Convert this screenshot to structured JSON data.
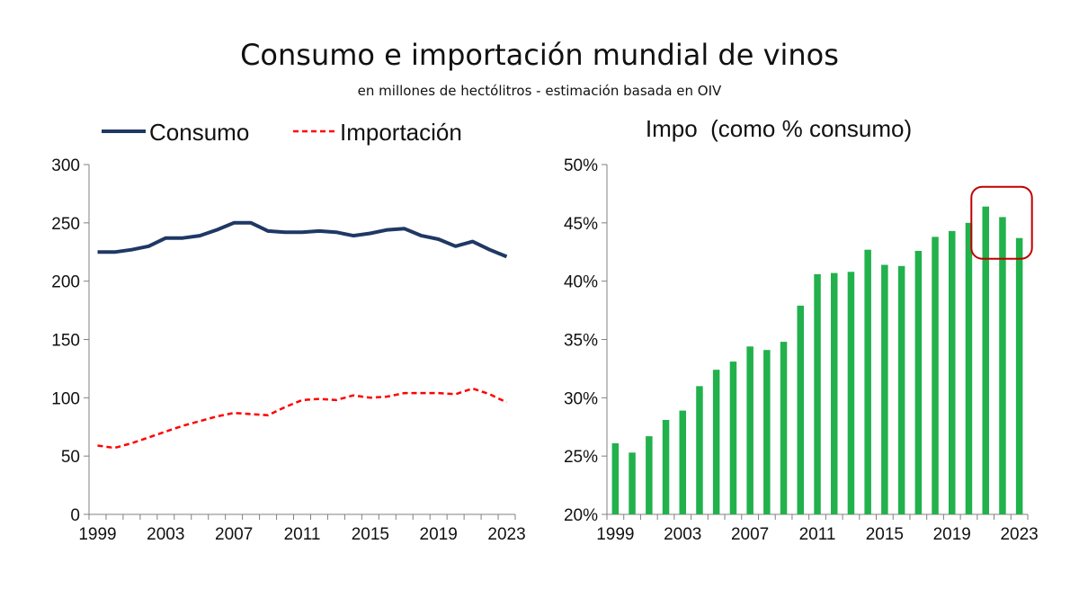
{
  "title": "Consumo e importación mundial de vinos",
  "subtitle": "en millones de hectólitros - estimación basada en OIV",
  "colors": {
    "consumo": "#1f3864",
    "importacion": "#ff0000",
    "bars": "#22b14c",
    "highlight": "#c00000"
  },
  "chart_data": [
    {
      "type": "line",
      "title": "",
      "legend": [
        "Consumo",
        "Importación"
      ],
      "legend_position": "top",
      "x": [
        1999,
        2000,
        2001,
        2002,
        2003,
        2004,
        2005,
        2006,
        2007,
        2008,
        2009,
        2010,
        2011,
        2012,
        2013,
        2014,
        2015,
        2016,
        2017,
        2018,
        2019,
        2020,
        2021,
        2022,
        2023
      ],
      "xticks": [
        "1999",
        "2003",
        "2007",
        "2011",
        "2015",
        "2019",
        "2023"
      ],
      "yticks": [
        "0",
        "50",
        "100",
        "150",
        "200",
        "250",
        "300"
      ],
      "ylim": [
        0,
        300
      ],
      "grid": false,
      "series": [
        {
          "name": "Consumo",
          "style": "solid",
          "values": [
            225,
            225,
            227,
            230,
            237,
            237,
            239,
            244,
            250,
            250,
            243,
            242,
            242,
            243,
            242,
            239,
            241,
            244,
            245,
            239,
            236,
            230,
            234,
            227,
            221
          ]
        },
        {
          "name": "Importación",
          "style": "dashed",
          "values": [
            59,
            57,
            61,
            66,
            71,
            76,
            80,
            84,
            87,
            86,
            85,
            92,
            98,
            99,
            98,
            102,
            100,
            101,
            104,
            104,
            104,
            103,
            108,
            103,
            96
          ]
        }
      ]
    },
    {
      "type": "bar",
      "title": "Impo  (como % consumo)",
      "x": [
        1999,
        2000,
        2001,
        2002,
        2003,
        2004,
        2005,
        2006,
        2007,
        2008,
        2009,
        2010,
        2011,
        2012,
        2013,
        2014,
        2015,
        2016,
        2017,
        2018,
        2019,
        2020,
        2021,
        2022,
        2023
      ],
      "xticks": [
        "1999",
        "2003",
        "2007",
        "2011",
        "2015",
        "2019",
        "2023"
      ],
      "values": [
        26.1,
        25.3,
        26.7,
        28.1,
        28.9,
        31.0,
        32.4,
        33.1,
        34.4,
        34.1,
        34.8,
        37.9,
        40.6,
        40.7,
        40.8,
        42.7,
        41.4,
        41.3,
        42.6,
        43.8,
        44.3,
        45.0,
        46.4,
        45.5,
        43.7
      ],
      "yticks": [
        "20%",
        "25%",
        "30%",
        "35%",
        "40%",
        "45%",
        "50%"
      ],
      "ylim": [
        20,
        50
      ],
      "grid": false,
      "highlight": [
        2021,
        2023
      ]
    }
  ]
}
